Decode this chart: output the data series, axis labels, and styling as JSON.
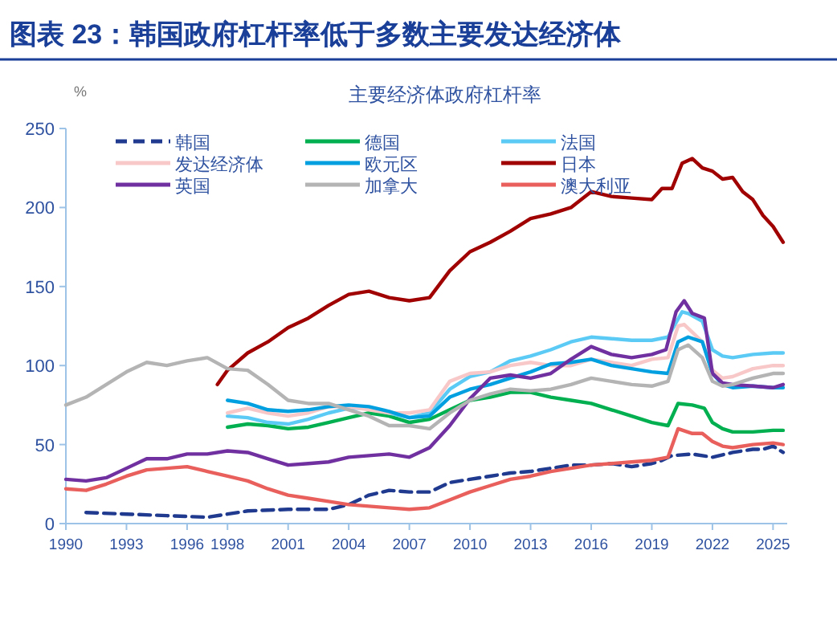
{
  "chart_data": {
    "type": "line",
    "title": "图表 23：韩国政府杠杆率低于多数主要发达经济体",
    "subtitle": "主要经济体政府杠杆率",
    "ylabel": "%",
    "xlim": [
      1990,
      2025.7
    ],
    "xticks": [
      1990,
      1993,
      1996,
      1998,
      2001,
      2004,
      2007,
      2010,
      2013,
      2016,
      2019,
      2022,
      2025
    ],
    "ylim": [
      0,
      250
    ],
    "yticks": [
      0,
      50,
      100,
      150,
      200,
      250
    ],
    "grid": false,
    "legend": "top left",
    "marker": "none",
    "series": [
      {
        "name": "韩国",
        "color": "#1f3a8f",
        "line_style": "dashed",
        "x": [
          1991,
          1993,
          1995,
          1997,
          1998,
          1999,
          2001,
          2003,
          2004,
          2005,
          2006,
          2007,
          2008,
          2009,
          2010,
          2011,
          2012,
          2013,
          2014,
          2015,
          2016,
          2017,
          2018,
          2019,
          2019.5,
          2020,
          2021,
          2022,
          2023,
          2024,
          2024.5,
          2025,
          2025.5
        ],
        "values": [
          7,
          6,
          5,
          4,
          6,
          8,
          9,
          9,
          12,
          18,
          21,
          20,
          20,
          26,
          28,
          30,
          32,
          33,
          35,
          37,
          37,
          38,
          36,
          38,
          40,
          43,
          44,
          42,
          45,
          47,
          47,
          49,
          45
        ]
      },
      {
        "name": "德国",
        "color": "#00b050",
        "x": [
          1998,
          1999,
          2000,
          2001,
          2002,
          2003,
          2004,
          2005,
          2006,
          2007,
          2008,
          2009,
          2010,
          2011,
          2012,
          2013,
          2014,
          2015,
          2016,
          2017,
          2018,
          2019,
          2019.8,
          2020.3,
          2021,
          2021.6,
          2022,
          2022.5,
          2023,
          2024,
          2025,
          2025.5
        ],
        "values": [
          61,
          63,
          62,
          60,
          61,
          64,
          67,
          70,
          68,
          64,
          66,
          72,
          78,
          80,
          83,
          83,
          80,
          78,
          76,
          72,
          68,
          64,
          62,
          76,
          75,
          73,
          64,
          60,
          58,
          58,
          59,
          59
        ]
      },
      {
        "name": "法国",
        "color": "#5bcbf5",
        "x": [
          1998,
          1999,
          2000,
          2001,
          2002,
          2003,
          2004,
          2005,
          2006,
          2007,
          2008,
          2009,
          2010,
          2011,
          2012,
          2013,
          2014,
          2015,
          2016,
          2017,
          2018,
          2019,
          2019.8,
          2020.5,
          2020.8,
          2021.5,
          2022,
          2022.5,
          2023,
          2024,
          2025,
          2025.5
        ],
        "values": [
          68,
          67,
          64,
          63,
          66,
          70,
          73,
          73,
          70,
          67,
          70,
          85,
          93,
          96,
          103,
          106,
          110,
          115,
          118,
          117,
          116,
          116,
          118,
          134,
          133,
          128,
          110,
          106,
          105,
          107,
          108,
          108
        ]
      },
      {
        "name": "发达经济体",
        "color": "#f8c8c8",
        "x": [
          1998,
          1999,
          2000,
          2001,
          2002,
          2003,
          2004,
          2005,
          2006,
          2007,
          2008,
          2009,
          2010,
          2011,
          2012,
          2013,
          2014,
          2015,
          2016,
          2017,
          2018,
          2019,
          2019.8,
          2020.3,
          2020.6,
          2021.5,
          2022,
          2022.5,
          2023,
          2024,
          2025,
          2025.5
        ],
        "values": [
          70,
          73,
          70,
          68,
          70,
          74,
          74,
          72,
          70,
          70,
          72,
          90,
          95,
          96,
          100,
          102,
          100,
          100,
          104,
          102,
          100,
          104,
          105,
          125,
          126,
          115,
          97,
          92,
          93,
          98,
          100,
          100
        ]
      },
      {
        "name": "欧元区",
        "color": "#00a0e0",
        "x": [
          1998,
          1999,
          2000,
          2001,
          2002,
          2003,
          2004,
          2005,
          2006,
          2007,
          2008,
          2009,
          2010,
          2011,
          2012,
          2013,
          2014,
          2015,
          2016,
          2017,
          2018,
          2019,
          2019.8,
          2020.3,
          2020.8,
          2021.5,
          2022,
          2022.5,
          2023,
          2024,
          2025,
          2025.5
        ],
        "values": [
          78,
          76,
          72,
          71,
          72,
          74,
          75,
          74,
          71,
          67,
          68,
          80,
          85,
          88,
          92,
          96,
          101,
          102,
          104,
          100,
          98,
          96,
          95,
          115,
          118,
          115,
          95,
          88,
          86,
          87,
          86,
          86
        ]
      },
      {
        "name": "日本",
        "color": "#a00000",
        "x": [
          1997.5,
          1998,
          1999,
          2000,
          2001,
          2002,
          2003,
          2004,
          2005,
          2006,
          2007,
          2008,
          2009,
          2010,
          2011,
          2012,
          2013,
          2014,
          2015,
          2016,
          2017,
          2018,
          2019,
          2019.5,
          2020,
          2020.5,
          2021,
          2021.5,
          2022,
          2022.5,
          2023,
          2023.5,
          2024,
          2024.5,
          2025,
          2025.5
        ],
        "values": [
          88,
          97,
          108,
          115,
          124,
          130,
          138,
          145,
          147,
          143,
          141,
          143,
          160,
          172,
          178,
          185,
          193,
          196,
          200,
          210,
          207,
          206,
          205,
          212,
          212,
          228,
          231,
          225,
          223,
          218,
          219,
          210,
          205,
          195,
          188,
          178
        ]
      },
      {
        "name": "英国",
        "color": "#7030a0",
        "x": [
          1990,
          1991,
          1992,
          1993,
          1994,
          1995,
          1996,
          1997,
          1998,
          1999,
          2000,
          2001,
          2002,
          2003,
          2004,
          2005,
          2006,
          2007,
          2008,
          2009,
          2010,
          2011,
          2012,
          2013,
          2014,
          2015,
          2016,
          2017,
          2018,
          2019,
          2019.7,
          2020.2,
          2020.6,
          2021,
          2021.6,
          2022,
          2022.5,
          2023,
          2024,
          2025,
          2025.5
        ],
        "values": [
          28,
          27,
          29,
          35,
          41,
          41,
          44,
          44,
          46,
          45,
          41,
          37,
          38,
          39,
          42,
          43,
          44,
          42,
          48,
          62,
          79,
          92,
          94,
          92,
          95,
          104,
          112,
          107,
          105,
          107,
          110,
          134,
          141,
          133,
          130,
          95,
          89,
          88,
          87,
          86,
          88
        ]
      },
      {
        "name": "加拿大",
        "color": "#b4b4b4",
        "x": [
          1990,
          1991,
          1992,
          1993,
          1994,
          1995,
          1996,
          1997,
          1998,
          1999,
          2000,
          2001,
          2002,
          2003,
          2004,
          2005,
          2006,
          2007,
          2008,
          2009,
          2010,
          2011,
          2012,
          2013,
          2014,
          2015,
          2016,
          2017,
          2018,
          2019,
          2019.8,
          2020.3,
          2020.8,
          2021.5,
          2022,
          2022.5,
          2023,
          2024,
          2025,
          2025.5
        ],
        "values": [
          75,
          80,
          88,
          96,
          102,
          100,
          103,
          105,
          98,
          97,
          88,
          78,
          76,
          76,
          72,
          68,
          62,
          62,
          60,
          70,
          78,
          82,
          85,
          84,
          85,
          88,
          92,
          90,
          88,
          87,
          90,
          110,
          113,
          105,
          90,
          87,
          88,
          92,
          95,
          95
        ]
      },
      {
        "name": "澳大利亚",
        "color": "#e85f5c",
        "x": [
          1990,
          1991,
          1992,
          1993,
          1994,
          1995,
          1996,
          1997,
          1998,
          1999,
          2000,
          2001,
          2002,
          2003,
          2004,
          2005,
          2006,
          2007,
          2008,
          2009,
          2010,
          2011,
          2012,
          2013,
          2014,
          2015,
          2016,
          2017,
          2018,
          2019,
          2019.8,
          2020.3,
          2021,
          2021.5,
          2022,
          2022.5,
          2023,
          2024,
          2025,
          2025.5
        ],
        "values": [
          22,
          21,
          25,
          30,
          34,
          35,
          36,
          33,
          30,
          27,
          22,
          18,
          16,
          14,
          12,
          11,
          10,
          9,
          10,
          15,
          20,
          24,
          28,
          30,
          33,
          35,
          37,
          38,
          39,
          40,
          42,
          60,
          57,
          57,
          52,
          49,
          48,
          50,
          51,
          50
        ]
      }
    ]
  }
}
